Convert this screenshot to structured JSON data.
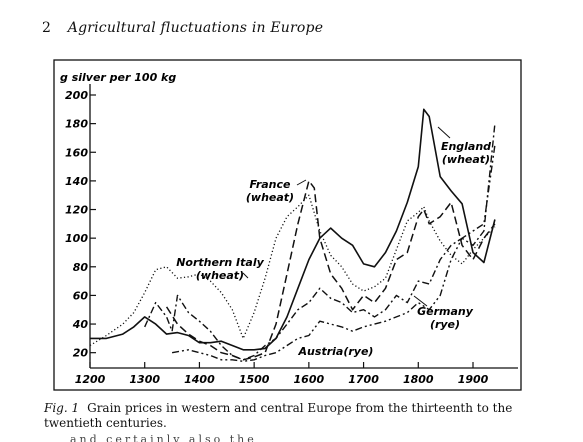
{
  "page": {
    "page_number": "2",
    "running_title": "Agricultural fluctuations in Europe",
    "caption_label": "Fig. 1",
    "caption_text": "Grain prices in western and central Europe from the thirteenth to the twentieth centuries.",
    "cutoff_text": "and certainly also the"
  },
  "chart_data": {
    "type": "line",
    "title": "",
    "ylabel": "g silver per 100 kg",
    "xlabel": "",
    "xlim": [
      1180,
      1960
    ],
    "ylim": [
      10,
      205
    ],
    "x_ticks": [
      1200,
      1300,
      1400,
      1500,
      1600,
      1700,
      1800,
      1900
    ],
    "y_ticks": [
      20,
      40,
      60,
      80,
      100,
      120,
      140,
      160,
      180,
      200
    ],
    "grid": false,
    "legend": "none (series labelled directly on the plot)",
    "series": [
      {
        "name": "England (wheat)",
        "label_lines": [
          "England",
          "(wheat)"
        ],
        "style": "solid",
        "x": [
          1200,
          1230,
          1260,
          1280,
          1300,
          1320,
          1340,
          1360,
          1380,
          1400,
          1420,
          1440,
          1460,
          1480,
          1500,
          1520,
          1540,
          1560,
          1580,
          1600,
          1620,
          1640,
          1660,
          1680,
          1700,
          1720,
          1740,
          1760,
          1780,
          1800,
          1810,
          1820,
          1840,
          1860,
          1880,
          1900,
          1920,
          1940
        ],
        "y": [
          30,
          30,
          33,
          38,
          45,
          40,
          33,
          34,
          32,
          27,
          27,
          28,
          25,
          22,
          22,
          23,
          30,
          45,
          65,
          85,
          100,
          107,
          100,
          95,
          82,
          80,
          90,
          105,
          125,
          150,
          190,
          185,
          143,
          133,
          124,
          90,
          83,
          113
        ]
      },
      {
        "name": "France (wheat)",
        "label_lines": [
          "France",
          "(wheat)"
        ],
        "style": "dashed",
        "x": [
          1340,
          1360,
          1380,
          1400,
          1420,
          1440,
          1460,
          1480,
          1500,
          1520,
          1540,
          1560,
          1580,
          1600,
          1610,
          1620,
          1640,
          1660,
          1680,
          1700,
          1720,
          1740,
          1760,
          1780,
          1800,
          1810,
          1820,
          1840,
          1860,
          1880,
          1900,
          1920,
          1940
        ],
        "y": [
          52,
          40,
          33,
          28,
          25,
          20,
          18,
          15,
          17,
          20,
          40,
          75,
          110,
          140,
          135,
          100,
          75,
          65,
          50,
          60,
          55,
          65,
          85,
          90,
          115,
          120,
          110,
          115,
          125,
          95,
          85,
          100,
          110
        ]
      },
      {
        "name": "Northern Italy (wheat)",
        "label_lines": [
          "Northern Italy",
          "(wheat)"
        ],
        "style": "dotted",
        "x": [
          1200,
          1230,
          1260,
          1280,
          1300,
          1320,
          1340,
          1360,
          1380,
          1400,
          1420,
          1440,
          1460,
          1480,
          1500,
          1520,
          1540,
          1560,
          1580,
          1600,
          1620,
          1640,
          1660,
          1680,
          1700,
          1720,
          1740,
          1760,
          1780,
          1800,
          1810,
          1820,
          1840,
          1860,
          1880,
          1900,
          1920,
          1940
        ],
        "y": [
          25,
          32,
          40,
          48,
          62,
          78,
          80,
          72,
          73,
          75,
          70,
          62,
          50,
          30,
          48,
          72,
          100,
          115,
          122,
          130,
          105,
          88,
          80,
          68,
          63,
          66,
          72,
          92,
          112,
          118,
          122,
          112,
          98,
          88,
          82,
          92,
          100,
          108
        ]
      },
      {
        "name": "Germany (rye)",
        "label_lines": [
          "Germany",
          "(rye)"
        ],
        "style": "dash-dot",
        "x": [
          1300,
          1320,
          1340,
          1350,
          1360,
          1380,
          1400,
          1420,
          1440,
          1460,
          1480,
          1500,
          1520,
          1540,
          1560,
          1580,
          1600,
          1620,
          1640,
          1660,
          1680,
          1700,
          1720,
          1740,
          1760,
          1780,
          1800,
          1820,
          1840,
          1860,
          1880,
          1900,
          1920,
          1940
        ],
        "y": [
          38,
          55,
          45,
          35,
          60,
          48,
          42,
          35,
          25,
          18,
          15,
          18,
          25,
          30,
          40,
          50,
          55,
          65,
          58,
          55,
          48,
          50,
          45,
          50,
          60,
          55,
          70,
          68,
          85,
          95,
          100,
          95,
          105,
          180
        ]
      },
      {
        "name": "Austria (rye)",
        "label_lines": [
          "Austria(rye)"
        ],
        "style": "dash-dot-dot",
        "x": [
          1350,
          1380,
          1400,
          1420,
          1440,
          1460,
          1480,
          1500,
          1520,
          1540,
          1560,
          1580,
          1600,
          1620,
          1640,
          1660,
          1680,
          1700,
          1720,
          1740,
          1760,
          1780,
          1800,
          1820,
          1840,
          1860,
          1880,
          1900,
          1920,
          1940
        ],
        "y": [
          20,
          22,
          20,
          18,
          15,
          15,
          14,
          15,
          18,
          20,
          25,
          30,
          32,
          42,
          40,
          38,
          35,
          38,
          40,
          42,
          45,
          48,
          55,
          50,
          60,
          85,
          100,
          105,
          110,
          165
        ]
      }
    ]
  }
}
